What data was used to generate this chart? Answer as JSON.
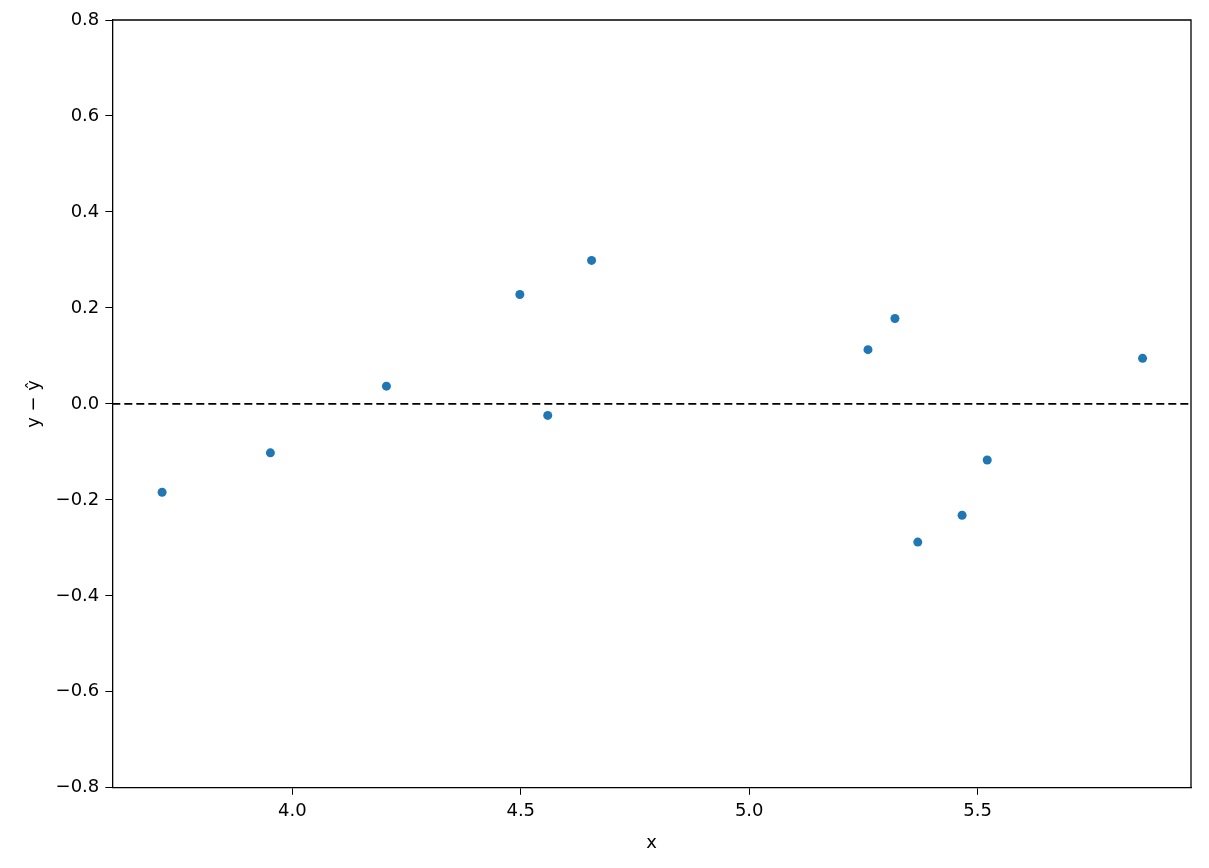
{
  "chart_data": {
    "type": "scatter",
    "xlabel": "x",
    "ylabel": "y − ŷ",
    "marker": "circle",
    "xlim": [
      3.606,
      5.967
    ],
    "ylim": [
      -0.8,
      0.8
    ],
    "xticks": [
      {
        "value": 4,
        "label": "4.0"
      },
      {
        "value": 4.5,
        "label": "4.5"
      },
      {
        "value": 5,
        "label": "5.0"
      },
      {
        "value": 5.5,
        "label": "5.5"
      }
    ],
    "yticks": [
      {
        "value": -0.8,
        "label": "−0.8"
      },
      {
        "value": -0.6,
        "label": "−0.6"
      },
      {
        "value": -0.4,
        "label": "−0.4"
      },
      {
        "value": -0.2,
        "label": "−0.2"
      },
      {
        "value": 0,
        "label": "0.0"
      },
      {
        "value": 0.2,
        "label": "0.2"
      },
      {
        "value": 0.4,
        "label": "0.4"
      },
      {
        "value": 0.6,
        "label": "0.6"
      },
      {
        "value": 0.8,
        "label": "0.8"
      }
    ],
    "series": [
      {
        "color": "#1f77b4",
        "x": [
          3.715,
          3.952,
          4.206,
          4.498,
          4.559,
          4.655,
          5.26,
          5.319,
          5.369,
          5.466,
          5.521,
          5.861
        ],
        "values": [
          -0.184,
          -0.102,
          0.037,
          0.228,
          -0.024,
          0.299,
          0.113,
          0.178,
          -0.288,
          -0.232,
          -0.117,
          0.095
        ]
      }
    ],
    "ref_lines": [
      {
        "axis": "y",
        "value": 0,
        "color": "#000000",
        "line_style": "dashed"
      }
    ]
  }
}
